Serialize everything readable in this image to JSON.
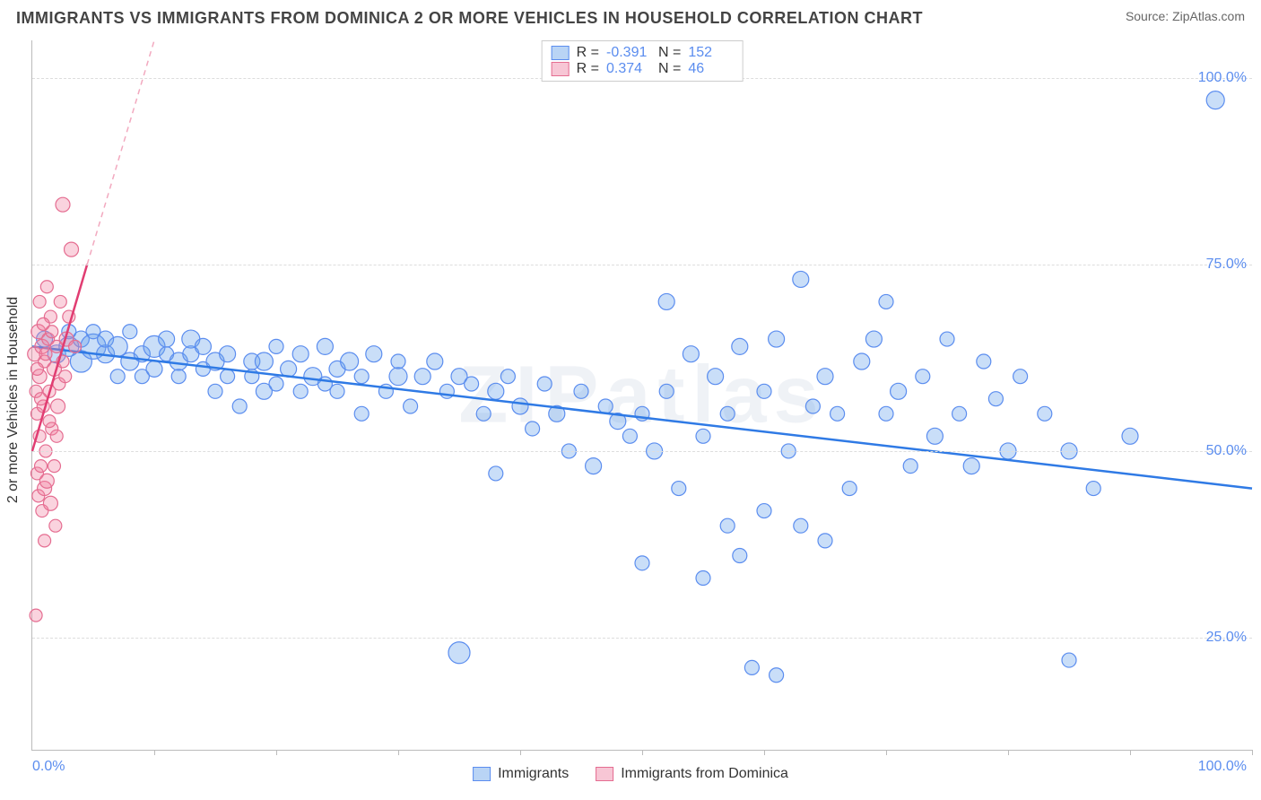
{
  "title": "IMMIGRANTS VS IMMIGRANTS FROM DOMINICA 2 OR MORE VEHICLES IN HOUSEHOLD CORRELATION CHART",
  "source_label": "Source:",
  "source_name": "ZipAtlas.com",
  "ylabel": "2 or more Vehicles in Household",
  "watermark": "ZIPatlas",
  "chart": {
    "type": "scatter",
    "xlim": [
      0,
      100
    ],
    "ylim": [
      10,
      105
    ],
    "x_origin_label": "0.0%",
    "x_max_label": "100.0%",
    "y_ticks": [
      {
        "v": 25,
        "label": "25.0%"
      },
      {
        "v": 50,
        "label": "50.0%"
      },
      {
        "v": 75,
        "label": "75.0%"
      },
      {
        "v": 100,
        "label": "100.0%"
      }
    ],
    "x_tick_positions": [
      10,
      20,
      30,
      40,
      50,
      60,
      70,
      80,
      90,
      100
    ],
    "grid_color": "#dddddd",
    "background": "#ffffff",
    "series": [
      {
        "id": "immigrants",
        "label": "Immigrants",
        "fill": "rgba(100,160,235,0.35)",
        "stroke": "#5b8def",
        "swatch_fill": "#b9d4f5",
        "swatch_stroke": "#5b8def",
        "R": "-0.391",
        "N": "152",
        "trend": {
          "x1": 0,
          "y1": 64,
          "x2": 100,
          "y2": 45,
          "dash": false,
          "color": "#2f7ae5",
          "width": 2.5
        },
        "points": [
          {
            "x": 1,
            "y": 65,
            "r": 9
          },
          {
            "x": 2,
            "y": 63,
            "r": 10
          },
          {
            "x": 3,
            "y": 64,
            "r": 11
          },
          {
            "x": 3,
            "y": 66,
            "r": 8
          },
          {
            "x": 4,
            "y": 62,
            "r": 12
          },
          {
            "x": 4,
            "y": 65,
            "r": 9
          },
          {
            "x": 5,
            "y": 64,
            "r": 14
          },
          {
            "x": 5,
            "y": 66,
            "r": 8
          },
          {
            "x": 6,
            "y": 63,
            "r": 10
          },
          {
            "x": 6,
            "y": 65,
            "r": 9
          },
          {
            "x": 7,
            "y": 60,
            "r": 8
          },
          {
            "x": 7,
            "y": 64,
            "r": 11
          },
          {
            "x": 8,
            "y": 62,
            "r": 10
          },
          {
            "x": 8,
            "y": 66,
            "r": 8
          },
          {
            "x": 9,
            "y": 63,
            "r": 9
          },
          {
            "x": 9,
            "y": 60,
            "r": 8
          },
          {
            "x": 10,
            "y": 64,
            "r": 12
          },
          {
            "x": 10,
            "y": 61,
            "r": 9
          },
          {
            "x": 11,
            "y": 63,
            "r": 8
          },
          {
            "x": 11,
            "y": 65,
            "r": 9
          },
          {
            "x": 12,
            "y": 62,
            "r": 10
          },
          {
            "x": 12,
            "y": 60,
            "r": 8
          },
          {
            "x": 13,
            "y": 63,
            "r": 9
          },
          {
            "x": 13,
            "y": 65,
            "r": 10
          },
          {
            "x": 14,
            "y": 61,
            "r": 8
          },
          {
            "x": 14,
            "y": 64,
            "r": 9
          },
          {
            "x": 15,
            "y": 58,
            "r": 8
          },
          {
            "x": 15,
            "y": 62,
            "r": 10
          },
          {
            "x": 16,
            "y": 63,
            "r": 9
          },
          {
            "x": 16,
            "y": 60,
            "r": 8
          },
          {
            "x": 17,
            "y": 56,
            "r": 8
          },
          {
            "x": 18,
            "y": 62,
            "r": 9
          },
          {
            "x": 18,
            "y": 60,
            "r": 8
          },
          {
            "x": 19,
            "y": 58,
            "r": 9
          },
          {
            "x": 19,
            "y": 62,
            "r": 10
          },
          {
            "x": 20,
            "y": 64,
            "r": 8
          },
          {
            "x": 20,
            "y": 59,
            "r": 8
          },
          {
            "x": 21,
            "y": 61,
            "r": 9
          },
          {
            "x": 22,
            "y": 58,
            "r": 8
          },
          {
            "x": 22,
            "y": 63,
            "r": 9
          },
          {
            "x": 23,
            "y": 60,
            "r": 10
          },
          {
            "x": 24,
            "y": 59,
            "r": 8
          },
          {
            "x": 24,
            "y": 64,
            "r": 9
          },
          {
            "x": 25,
            "y": 58,
            "r": 8
          },
          {
            "x": 25,
            "y": 61,
            "r": 9
          },
          {
            "x": 26,
            "y": 62,
            "r": 10
          },
          {
            "x": 27,
            "y": 60,
            "r": 8
          },
          {
            "x": 27,
            "y": 55,
            "r": 8
          },
          {
            "x": 28,
            "y": 63,
            "r": 9
          },
          {
            "x": 29,
            "y": 58,
            "r": 8
          },
          {
            "x": 30,
            "y": 60,
            "r": 10
          },
          {
            "x": 30,
            "y": 62,
            "r": 8
          },
          {
            "x": 31,
            "y": 56,
            "r": 8
          },
          {
            "x": 32,
            "y": 60,
            "r": 9
          },
          {
            "x": 33,
            "y": 62,
            "r": 9
          },
          {
            "x": 34,
            "y": 58,
            "r": 8
          },
          {
            "x": 35,
            "y": 23,
            "r": 12
          },
          {
            "x": 35,
            "y": 60,
            "r": 9
          },
          {
            "x": 36,
            "y": 59,
            "r": 8
          },
          {
            "x": 37,
            "y": 55,
            "r": 8
          },
          {
            "x": 38,
            "y": 47,
            "r": 8
          },
          {
            "x": 38,
            "y": 58,
            "r": 9
          },
          {
            "x": 39,
            "y": 60,
            "r": 8
          },
          {
            "x": 40,
            "y": 56,
            "r": 9
          },
          {
            "x": 41,
            "y": 53,
            "r": 8
          },
          {
            "x": 42,
            "y": 59,
            "r": 8
          },
          {
            "x": 43,
            "y": 55,
            "r": 9
          },
          {
            "x": 44,
            "y": 50,
            "r": 8
          },
          {
            "x": 45,
            "y": 58,
            "r": 8
          },
          {
            "x": 46,
            "y": 48,
            "r": 9
          },
          {
            "x": 47,
            "y": 56,
            "r": 8
          },
          {
            "x": 48,
            "y": 54,
            "r": 9
          },
          {
            "x": 49,
            "y": 52,
            "r": 8
          },
          {
            "x": 50,
            "y": 35,
            "r": 8
          },
          {
            "x": 50,
            "y": 55,
            "r": 8
          },
          {
            "x": 51,
            "y": 50,
            "r": 9
          },
          {
            "x": 52,
            "y": 70,
            "r": 9
          },
          {
            "x": 52,
            "y": 58,
            "r": 8
          },
          {
            "x": 53,
            "y": 45,
            "r": 8
          },
          {
            "x": 54,
            "y": 63,
            "r": 9
          },
          {
            "x": 55,
            "y": 33,
            "r": 8
          },
          {
            "x": 55,
            "y": 52,
            "r": 8
          },
          {
            "x": 56,
            "y": 60,
            "r": 9
          },
          {
            "x": 57,
            "y": 40,
            "r": 8
          },
          {
            "x": 57,
            "y": 55,
            "r": 8
          },
          {
            "x": 58,
            "y": 36,
            "r": 8
          },
          {
            "x": 58,
            "y": 64,
            "r": 9
          },
          {
            "x": 59,
            "y": 21,
            "r": 8
          },
          {
            "x": 60,
            "y": 58,
            "r": 8
          },
          {
            "x": 60,
            "y": 42,
            "r": 8
          },
          {
            "x": 61,
            "y": 20,
            "r": 8
          },
          {
            "x": 61,
            "y": 65,
            "r": 9
          },
          {
            "x": 62,
            "y": 50,
            "r": 8
          },
          {
            "x": 63,
            "y": 73,
            "r": 9
          },
          {
            "x": 63,
            "y": 40,
            "r": 8
          },
          {
            "x": 64,
            "y": 56,
            "r": 8
          },
          {
            "x": 65,
            "y": 60,
            "r": 9
          },
          {
            "x": 65,
            "y": 38,
            "r": 8
          },
          {
            "x": 66,
            "y": 55,
            "r": 8
          },
          {
            "x": 67,
            "y": 45,
            "r": 8
          },
          {
            "x": 68,
            "y": 62,
            "r": 9
          },
          {
            "x": 69,
            "y": 65,
            "r": 9
          },
          {
            "x": 70,
            "y": 55,
            "r": 8
          },
          {
            "x": 70,
            "y": 70,
            "r": 8
          },
          {
            "x": 71,
            "y": 58,
            "r": 9
          },
          {
            "x": 72,
            "y": 48,
            "r": 8
          },
          {
            "x": 73,
            "y": 60,
            "r": 8
          },
          {
            "x": 74,
            "y": 52,
            "r": 9
          },
          {
            "x": 75,
            "y": 65,
            "r": 8
          },
          {
            "x": 76,
            "y": 55,
            "r": 8
          },
          {
            "x": 77,
            "y": 48,
            "r": 9
          },
          {
            "x": 78,
            "y": 62,
            "r": 8
          },
          {
            "x": 79,
            "y": 57,
            "r": 8
          },
          {
            "x": 80,
            "y": 50,
            "r": 9
          },
          {
            "x": 81,
            "y": 60,
            "r": 8
          },
          {
            "x": 83,
            "y": 55,
            "r": 8
          },
          {
            "x": 85,
            "y": 50,
            "r": 9
          },
          {
            "x": 85,
            "y": 22,
            "r": 8
          },
          {
            "x": 87,
            "y": 45,
            "r": 8
          },
          {
            "x": 90,
            "y": 52,
            "r": 9
          },
          {
            "x": 97,
            "y": 97,
            "r": 10
          }
        ]
      },
      {
        "id": "dominica",
        "label": "Immigrants from Dominica",
        "fill": "rgba(240,130,160,0.35)",
        "stroke": "#e56d91",
        "swatch_fill": "#f7c6d5",
        "swatch_stroke": "#e56d91",
        "R": "0.374",
        "N": "46",
        "trend": {
          "x1": 0,
          "y1": 50,
          "x2": 4.5,
          "y2": 75,
          "dash": false,
          "color": "#e13d72",
          "width": 2.5
        },
        "trend_ext": {
          "x1": 4.5,
          "y1": 75,
          "x2": 10,
          "y2": 105,
          "dash": true,
          "color": "#f2a9bf",
          "width": 1.5
        },
        "points": [
          {
            "x": 0.2,
            "y": 63,
            "r": 8
          },
          {
            "x": 0.3,
            "y": 58,
            "r": 7
          },
          {
            "x": 0.4,
            "y": 55,
            "r": 7
          },
          {
            "x": 0.4,
            "y": 47,
            "r": 7
          },
          {
            "x": 0.5,
            "y": 66,
            "r": 8
          },
          {
            "x": 0.5,
            "y": 44,
            "r": 7
          },
          {
            "x": 0.6,
            "y": 52,
            "r": 7
          },
          {
            "x": 0.6,
            "y": 60,
            "r": 8
          },
          {
            "x": 0.7,
            "y": 48,
            "r": 7
          },
          {
            "x": 0.8,
            "y": 64,
            "r": 8
          },
          {
            "x": 0.8,
            "y": 42,
            "r": 7
          },
          {
            "x": 0.9,
            "y": 56,
            "r": 7
          },
          {
            "x": 1.0,
            "y": 45,
            "r": 8
          },
          {
            "x": 1.0,
            "y": 62,
            "r": 7
          },
          {
            "x": 1.1,
            "y": 50,
            "r": 7
          },
          {
            "x": 1.2,
            "y": 46,
            "r": 8
          },
          {
            "x": 1.3,
            "y": 65,
            "r": 7
          },
          {
            "x": 1.4,
            "y": 58,
            "r": 7
          },
          {
            "x": 1.5,
            "y": 43,
            "r": 8
          },
          {
            "x": 1.5,
            "y": 68,
            "r": 7
          },
          {
            "x": 1.6,
            "y": 53,
            "r": 7
          },
          {
            "x": 1.8,
            "y": 61,
            "r": 8
          },
          {
            "x": 1.9,
            "y": 40,
            "r": 7
          },
          {
            "x": 2.0,
            "y": 64,
            "r": 7
          },
          {
            "x": 2.1,
            "y": 56,
            "r": 8
          },
          {
            "x": 2.3,
            "y": 70,
            "r": 7
          },
          {
            "x": 2.5,
            "y": 83,
            "r": 8
          },
          {
            "x": 2.5,
            "y": 62,
            "r": 7
          },
          {
            "x": 2.8,
            "y": 65,
            "r": 8
          },
          {
            "x": 3.0,
            "y": 68,
            "r": 7
          },
          {
            "x": 3.2,
            "y": 77,
            "r": 8
          },
          {
            "x": 3.5,
            "y": 64,
            "r": 7
          },
          {
            "x": 0.3,
            "y": 28,
            "r": 7
          },
          {
            "x": 1.0,
            "y": 38,
            "r": 7
          },
          {
            "x": 1.2,
            "y": 72,
            "r": 7
          },
          {
            "x": 1.8,
            "y": 48,
            "r": 7
          },
          {
            "x": 0.6,
            "y": 70,
            "r": 7
          },
          {
            "x": 0.9,
            "y": 67,
            "r": 7
          },
          {
            "x": 1.4,
            "y": 54,
            "r": 7
          },
          {
            "x": 2.2,
            "y": 59,
            "r": 7
          },
          {
            "x": 0.4,
            "y": 61,
            "r": 7
          },
          {
            "x": 0.7,
            "y": 57,
            "r": 7
          },
          {
            "x": 1.1,
            "y": 63,
            "r": 7
          },
          {
            "x": 1.6,
            "y": 66,
            "r": 7
          },
          {
            "x": 2.0,
            "y": 52,
            "r": 7
          },
          {
            "x": 2.7,
            "y": 60,
            "r": 7
          }
        ]
      }
    ]
  },
  "bottom_legend": [
    {
      "label": "Immigrants",
      "swatch_fill": "#b9d4f5",
      "swatch_stroke": "#5b8def"
    },
    {
      "label": "Immigrants from Dominica",
      "swatch_fill": "#f7c6d5",
      "swatch_stroke": "#e56d91"
    }
  ]
}
